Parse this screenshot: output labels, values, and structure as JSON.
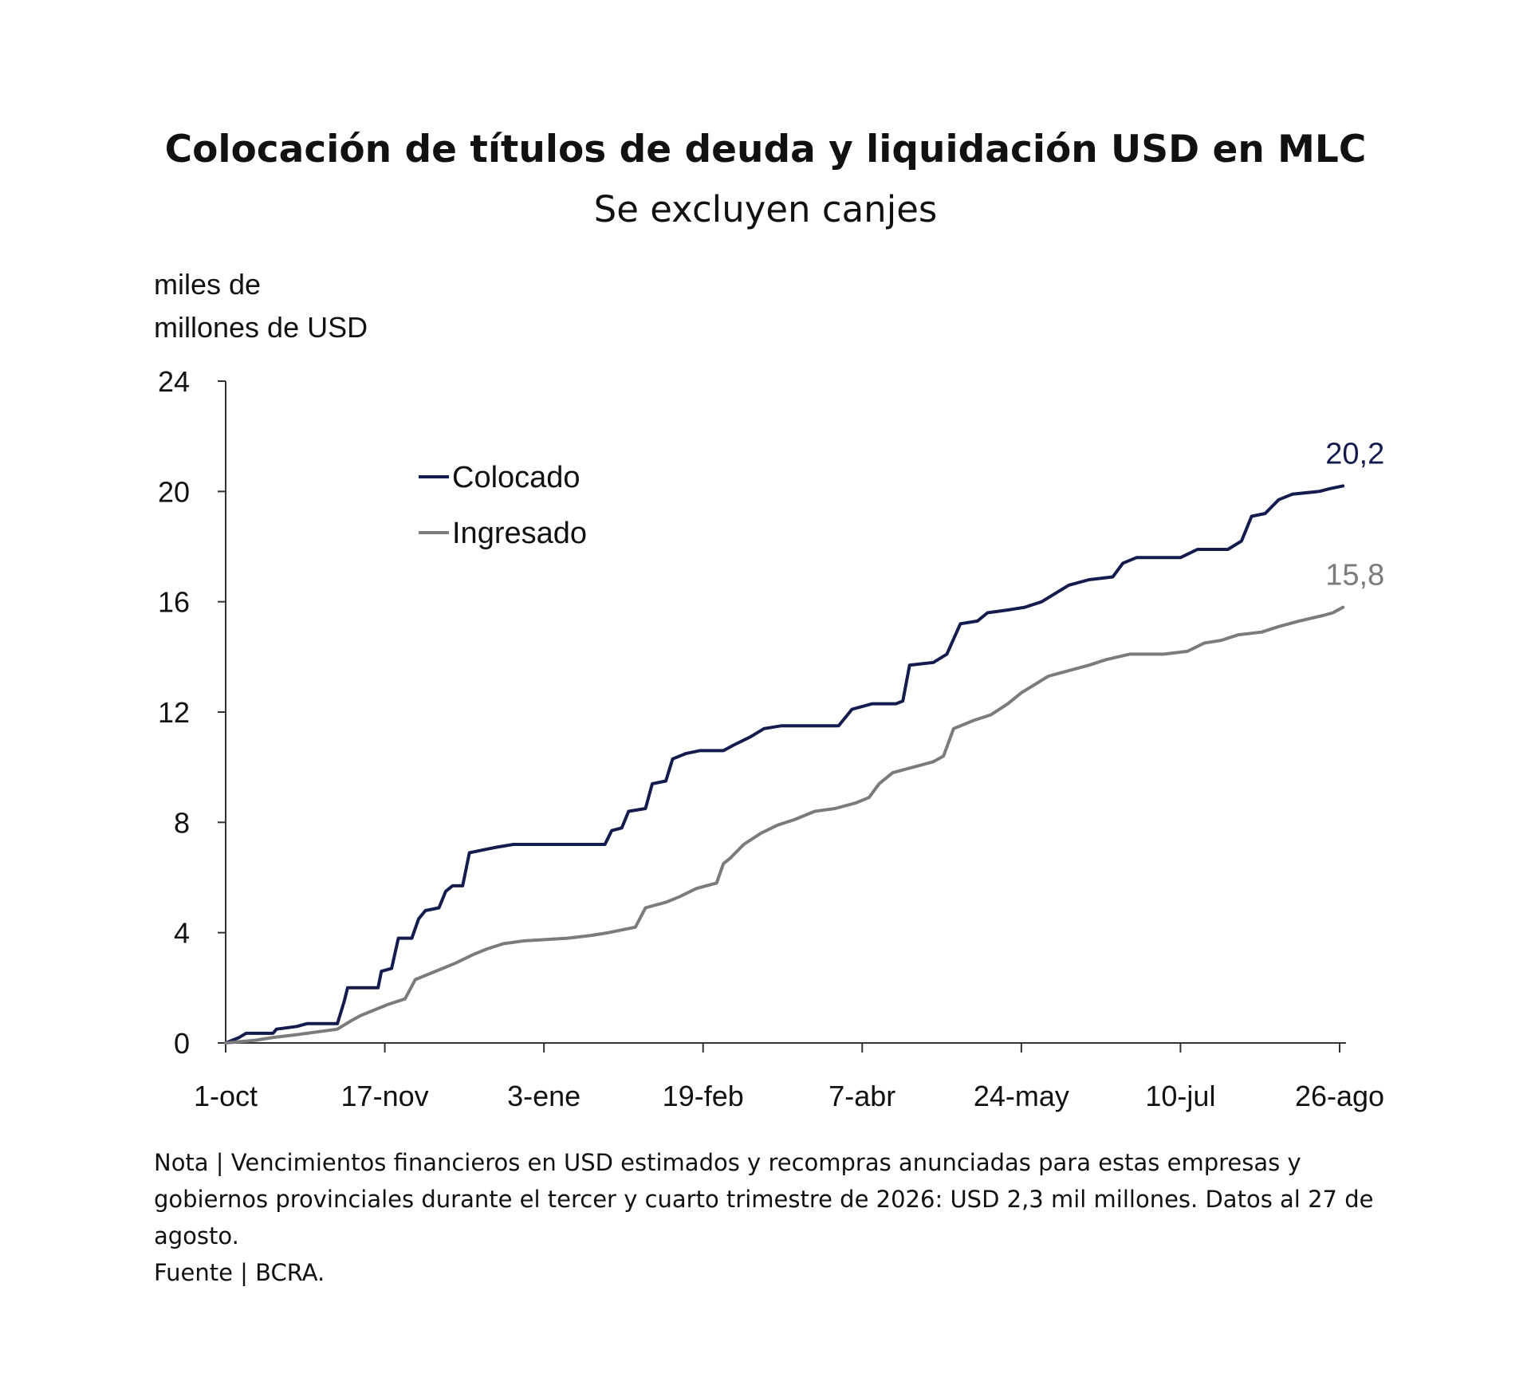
{
  "header": {
    "title": "Colocación de títulos de deuda y liquidación USD en MLC",
    "subtitle": "Se excluyen canjes"
  },
  "unit_label": [
    "miles de",
    "millones de USD"
  ],
  "footer": {
    "note": "Nota | Vencimientos financieros en USD estimados y recompras anunciadas para estas empresas y gobiernos provinciales durante el tercer y cuarto trimestre de 2026: USD 2,3 mil millones. Datos al 27 de agosto.",
    "source": "Fuente | BCRA."
  },
  "chart_data": {
    "type": "line",
    "title": "Colocación de títulos de deuda y liquidación USD en MLC",
    "subtitle": "Se excluyen canjes",
    "ylabel": "miles de millones de USD",
    "xlabel": "",
    "ylim": [
      0,
      24
    ],
    "yticks": [
      "0",
      "4",
      "8",
      "12",
      "16",
      "20",
      "24"
    ],
    "xlim": [
      "1-oct",
      "26-ago"
    ],
    "xticks": [
      "1-oct",
      "17-nov",
      "3-ene",
      "19-feb",
      "7-abr",
      "24-may",
      "10-jul",
      "26-ago"
    ],
    "grid": false,
    "legend": "top-left",
    "colors": {
      "Colocado": "#141b4d",
      "Ingresado": "#7b7b7b",
      "axis": "#333333"
    },
    "series": [
      {
        "name": "Colocado",
        "end_label": "20,2",
        "points": [
          [
            "1-oct",
            0.0
          ],
          [
            "5-oct",
            0.2
          ],
          [
            "7-oct",
            0.35
          ],
          [
            "15-oct",
            0.35
          ],
          [
            "16-oct",
            0.5
          ],
          [
            "22-oct",
            0.6
          ],
          [
            "25-oct",
            0.7
          ],
          [
            "3-nov",
            0.7
          ],
          [
            "5-nov",
            1.5
          ],
          [
            "6-nov",
            2.0
          ],
          [
            "15-nov",
            2.0
          ],
          [
            "16-nov",
            2.6
          ],
          [
            "19-nov",
            2.7
          ],
          [
            "21-nov",
            3.8
          ],
          [
            "25-nov",
            3.8
          ],
          [
            "27-nov",
            4.5
          ],
          [
            "29-nov",
            4.8
          ],
          [
            "3-dic",
            4.9
          ],
          [
            "5-dic",
            5.5
          ],
          [
            "7-dic",
            5.7
          ],
          [
            "10-dic",
            5.7
          ],
          [
            "12-dic",
            6.9
          ],
          [
            "16-dic",
            7.0
          ],
          [
            "20-dic",
            7.1
          ],
          [
            "25-dic",
            7.2
          ],
          [
            "5-ene",
            7.2
          ],
          [
            "21-ene",
            7.2
          ],
          [
            "23-ene",
            7.7
          ],
          [
            "26-ene",
            7.8
          ],
          [
            "28-ene",
            8.4
          ],
          [
            "2-feb",
            8.5
          ],
          [
            "4-feb",
            9.4
          ],
          [
            "8-feb",
            9.5
          ],
          [
            "10-feb",
            10.3
          ],
          [
            "14-feb",
            10.5
          ],
          [
            "18-feb",
            10.6
          ],
          [
            "25-feb",
            10.6
          ],
          [
            "28-feb",
            10.8
          ],
          [
            "5-mar",
            11.1
          ],
          [
            "9-mar",
            11.4
          ],
          [
            "14-mar",
            11.5
          ],
          [
            "24-mar",
            11.5
          ],
          [
            "31-mar",
            11.5
          ],
          [
            "2-abr",
            11.8
          ],
          [
            "4-abr",
            12.1
          ],
          [
            "10-abr",
            12.3
          ],
          [
            "17-abr",
            12.3
          ],
          [
            "19-abr",
            12.4
          ],
          [
            "21-abr",
            13.7
          ],
          [
            "28-abr",
            13.8
          ],
          [
            "2-may",
            14.1
          ],
          [
            "6-may",
            15.2
          ],
          [
            "11-may",
            15.3
          ],
          [
            "14-may",
            15.6
          ],
          [
            "20-may",
            15.7
          ],
          [
            "25-may",
            15.8
          ],
          [
            "30-may",
            16.0
          ],
          [
            "3-jun",
            16.3
          ],
          [
            "7-jun",
            16.6
          ],
          [
            "13-jun",
            16.8
          ],
          [
            "20-jun",
            16.9
          ],
          [
            "23-jun",
            17.4
          ],
          [
            "27-jun",
            17.6
          ],
          [
            "10-jul",
            17.6
          ],
          [
            "15-jul",
            17.9
          ],
          [
            "24-jul",
            17.9
          ],
          [
            "28-jul",
            18.2
          ],
          [
            "31-jul",
            19.1
          ],
          [
            "4-ago",
            19.2
          ],
          [
            "8-ago",
            19.7
          ],
          [
            "12-ago",
            19.9
          ],
          [
            "20-ago",
            20.0
          ],
          [
            "23-ago",
            20.1
          ],
          [
            "27-ago",
            20.2
          ]
        ]
      },
      {
        "name": "Ingresado",
        "end_label": "15,8",
        "points": [
          [
            "1-oct",
            0.0
          ],
          [
            "10-oct",
            0.1
          ],
          [
            "15-oct",
            0.2
          ],
          [
            "22-oct",
            0.3
          ],
          [
            "28-oct",
            0.4
          ],
          [
            "3-nov",
            0.5
          ],
          [
            "7-nov",
            0.8
          ],
          [
            "10-nov",
            1.0
          ],
          [
            "14-nov",
            1.2
          ],
          [
            "18-nov",
            1.4
          ],
          [
            "23-nov",
            1.6
          ],
          [
            "26-nov",
            2.3
          ],
          [
            "2-dic",
            2.6
          ],
          [
            "8-dic",
            2.9
          ],
          [
            "13-dic",
            3.2
          ],
          [
            "17-dic",
            3.4
          ],
          [
            "22-dic",
            3.6
          ],
          [
            "28-dic",
            3.7
          ],
          [
            "10-ene",
            3.8
          ],
          [
            "17-ene",
            3.9
          ],
          [
            "22-ene",
            4.0
          ],
          [
            "30-ene",
            4.2
          ],
          [
            "2-feb",
            4.9
          ],
          [
            "8-feb",
            5.1
          ],
          [
            "12-feb",
            5.3
          ],
          [
            "17-feb",
            5.6
          ],
          [
            "23-feb",
            5.8
          ],
          [
            "25-feb",
            6.5
          ],
          [
            "27-feb",
            6.7
          ],
          [
            "3-mar",
            7.2
          ],
          [
            "8-mar",
            7.6
          ],
          [
            "13-mar",
            7.9
          ],
          [
            "18-mar",
            8.1
          ],
          [
            "24-mar",
            8.4
          ],
          [
            "30-mar",
            8.5
          ],
          [
            "5-abr",
            8.7
          ],
          [
            "9-abr",
            8.9
          ],
          [
            "12-abr",
            9.4
          ],
          [
            "16-abr",
            9.8
          ],
          [
            "22-abr",
            10.0
          ],
          [
            "28-abr",
            10.2
          ],
          [
            "1-may",
            10.4
          ],
          [
            "4-may",
            11.4
          ],
          [
            "10-may",
            11.7
          ],
          [
            "15-may",
            11.9
          ],
          [
            "20-may",
            12.3
          ],
          [
            "24-may",
            12.7
          ],
          [
            "28-may",
            13.0
          ],
          [
            "1-jun",
            13.3
          ],
          [
            "7-jun",
            13.5
          ],
          [
            "13-jun",
            13.7
          ],
          [
            "18-jun",
            13.9
          ],
          [
            "25-jun",
            14.1
          ],
          [
            "5-jul",
            14.1
          ],
          [
            "12-jul",
            14.2
          ],
          [
            "17-jul",
            14.5
          ],
          [
            "22-jul",
            14.6
          ],
          [
            "27-jul",
            14.8
          ],
          [
            "3-ago",
            14.9
          ],
          [
            "8-ago",
            15.1
          ],
          [
            "14-ago",
            15.3
          ],
          [
            "21-ago",
            15.5
          ],
          [
            "24-ago",
            15.6
          ],
          [
            "27-ago",
            15.8
          ]
        ]
      }
    ]
  }
}
